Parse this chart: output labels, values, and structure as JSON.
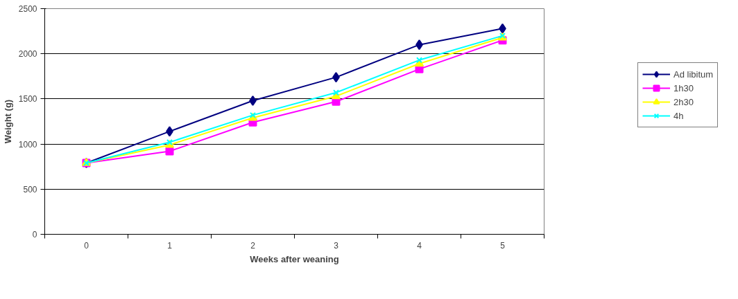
{
  "chart_data": {
    "type": "line",
    "xlabel": "Weeks after weaning",
    "ylabel": "Weight (g)",
    "categories": [
      "0",
      "1",
      "2",
      "3",
      "4",
      "5"
    ],
    "series": [
      {
        "name": "Ad libitum",
        "color": "#000080",
        "marker": "diamond",
        "values": [
          790,
          1140,
          1480,
          1740,
          2100,
          2280
        ]
      },
      {
        "name": "1h30",
        "color": "#ff00ff",
        "marker": "square",
        "values": [
          790,
          920,
          1240,
          1470,
          1830,
          2150
        ]
      },
      {
        "name": "2h30",
        "color": "#ffff00",
        "marker": "triangle",
        "values": [
          790,
          990,
          1290,
          1530,
          1890,
          2180
        ]
      },
      {
        "name": "4h",
        "color": "#00ffff",
        "marker": "cross",
        "values": [
          790,
          1020,
          1320,
          1570,
          1930,
          2200
        ]
      }
    ],
    "ylim": [
      0,
      2500
    ],
    "yticks": [
      0,
      500,
      1000,
      1500,
      2000,
      2500
    ],
    "grid": "y",
    "legend": "right",
    "line_style": "solid"
  }
}
